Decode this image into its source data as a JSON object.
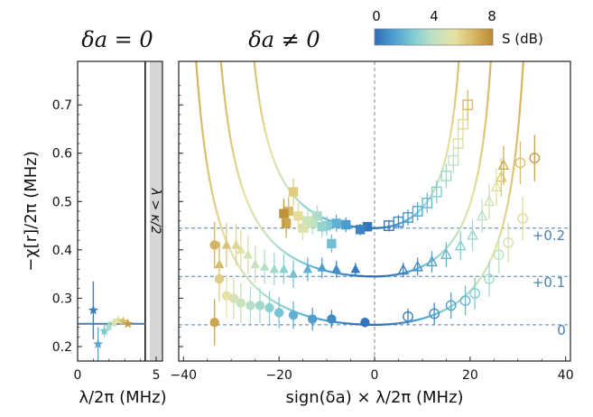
{
  "chart_data": [
    {
      "type": "scatter",
      "title": "δa = 0",
      "xlabel": "λ/2π (MHz)",
      "ylabel": "−χ[r]/2π (MHz)",
      "xlim": [
        0,
        5.4
      ],
      "ylim": [
        0.17,
        0.79
      ],
      "xticks": [
        0,
        5
      ],
      "yticks": [
        0.2,
        0.3,
        0.4,
        0.5,
        0.6,
        0.7
      ],
      "tick_labels_x": [
        "0",
        "5"
      ],
      "tick_labels_y": [
        "0.2",
        "0.3",
        "0.4",
        "0.5",
        "0.6",
        "0.7"
      ],
      "vline_x": 4.3,
      "shaded_region_label": "λ > κ/2",
      "hline_y": 0.247,
      "points": [
        {
          "x": 1.0,
          "y": 0.275,
          "err": 0.06,
          "S": 0.5
        },
        {
          "x": 1.3,
          "y": 0.205,
          "err": 0.035,
          "S": 1.5
        },
        {
          "x": 1.7,
          "y": 0.232,
          "err": 0.012,
          "S": 2.5
        },
        {
          "x": 2.0,
          "y": 0.242,
          "err": 0.01,
          "S": 3.5
        },
        {
          "x": 2.3,
          "y": 0.249,
          "err": 0.008,
          "S": 4.5
        },
        {
          "x": 2.6,
          "y": 0.254,
          "err": 0.006,
          "S": 5.5
        },
        {
          "x": 2.9,
          "y": 0.252,
          "err": 0.005,
          "S": 6.5
        },
        {
          "x": 3.2,
          "y": 0.247,
          "err": 0.004,
          "S": 7.5
        }
      ]
    },
    {
      "type": "scatter",
      "title": "δa ≠ 0",
      "xlabel": "sign(δa) × λ/2π (MHz)",
      "xlim": [
        -41,
        41
      ],
      "ylim": [
        0.17,
        0.79
      ],
      "xticks": [
        -40,
        -20,
        0,
        20,
        40
      ],
      "tick_labels_x": [
        "−40",
        "−20",
        "0",
        "20",
        "40"
      ],
      "offset_labels": [
        "+0.2",
        "+0.1",
        "0"
      ],
      "offsets": [
        0.2,
        0.1,
        0.0
      ],
      "baselines": [
        0.445,
        0.345,
        0.245
      ],
      "series": [
        {
          "marker": "square",
          "offset": 0.2,
          "points": [
            {
              "x": -1.5,
              "y": 0.448,
              "S": 0.2
            },
            {
              "x": -3,
              "y": 0.442,
              "S": 0.6
            },
            {
              "x": -6,
              "y": 0.452,
              "S": 1.2
            },
            {
              "x": -8,
              "y": 0.455,
              "S": 1.8
            },
            {
              "x": -9,
              "y": 0.413,
              "S": 2.2
            },
            {
              "x": -10,
              "y": 0.45,
              "S": 2.6
            },
            {
              "x": -11,
              "y": 0.448,
              "S": 3.0
            },
            {
              "x": -12,
              "y": 0.47,
              "S": 3.5
            },
            {
              "x": -13,
              "y": 0.455,
              "S": 4.0
            },
            {
              "x": -14,
              "y": 0.46,
              "S": 4.4
            },
            {
              "x": -15,
              "y": 0.445,
              "S": 5.0
            },
            {
              "x": -16,
              "y": 0.47,
              "S": 5.5
            },
            {
              "x": -17,
              "y": 0.52,
              "S": 6.0
            },
            {
              "x": -18,
              "y": 0.48,
              "S": 6.6
            },
            {
              "x": -18.5,
              "y": 0.455,
              "S": 7.2
            },
            {
              "x": -19,
              "y": 0.475,
              "S": 7.8
            },
            {
              "x": 3,
              "y": 0.45,
              "S": 0.3,
              "open": true
            },
            {
              "x": 5,
              "y": 0.458,
              "S": 0.7,
              "open": true
            },
            {
              "x": 7,
              "y": 0.467,
              "S": 1.1,
              "open": true
            },
            {
              "x": 9,
              "y": 0.48,
              "S": 1.5,
              "open": true
            },
            {
              "x": 11,
              "y": 0.497,
              "S": 2.0,
              "open": true
            },
            {
              "x": 13,
              "y": 0.52,
              "S": 2.6,
              "open": true
            },
            {
              "x": 15,
              "y": 0.553,
              "S": 3.3,
              "open": true
            },
            {
              "x": 16.5,
              "y": 0.585,
              "S": 4.0,
              "open": true
            },
            {
              "x": 17.5,
              "y": 0.62,
              "S": 4.8,
              "open": true
            },
            {
              "x": 18.5,
              "y": 0.66,
              "S": 5.6,
              "open": true
            },
            {
              "x": 19.5,
              "y": 0.7,
              "S": 6.6,
              "open": true
            }
          ]
        },
        {
          "marker": "triangle",
          "offset": 0.1,
          "points": [
            {
              "x": -4,
              "y": 0.36,
              "S": 0.3
            },
            {
              "x": -8,
              "y": 0.36,
              "S": 0.8
            },
            {
              "x": -11,
              "y": 0.363,
              "S": 1.3
            },
            {
              "x": -14,
              "y": 0.36,
              "S": 1.8
            },
            {
              "x": -17,
              "y": 0.35,
              "S": 2.3
            },
            {
              "x": -19,
              "y": 0.36,
              "S": 2.8
            },
            {
              "x": -21,
              "y": 0.36,
              "S": 3.3
            },
            {
              "x": -23,
              "y": 0.365,
              "S": 3.8
            },
            {
              "x": -25,
              "y": 0.37,
              "S": 4.3
            },
            {
              "x": -26.5,
              "y": 0.39,
              "S": 4.8
            },
            {
              "x": -28,
              "y": 0.4,
              "S": 5.3
            },
            {
              "x": -29,
              "y": 0.41,
              "S": 5.8
            },
            {
              "x": -31,
              "y": 0.41,
              "S": 6.3
            },
            {
              "x": -32.5,
              "y": 0.37,
              "S": 6.8
            },
            {
              "x": 6,
              "y": 0.358,
              "S": 0.5,
              "open": true
            },
            {
              "x": 9,
              "y": 0.365,
              "S": 0.9,
              "open": true
            },
            {
              "x": 12,
              "y": 0.375,
              "S": 1.4,
              "open": true
            },
            {
              "x": 15,
              "y": 0.39,
              "S": 2.0,
              "open": true
            },
            {
              "x": 18,
              "y": 0.408,
              "S": 2.6,
              "open": true
            },
            {
              "x": 20.5,
              "y": 0.43,
              "S": 3.2,
              "open": true
            },
            {
              "x": 22.5,
              "y": 0.47,
              "S": 3.9,
              "open": true
            },
            {
              "x": 24,
              "y": 0.5,
              "S": 4.6,
              "open": true
            },
            {
              "x": 25.5,
              "y": 0.53,
              "S": 5.4,
              "open": true
            },
            {
              "x": 26.5,
              "y": 0.55,
              "S": 6.2,
              "open": true
            },
            {
              "x": 27,
              "y": 0.575,
              "S": 7.0,
              "open": true
            }
          ]
        },
        {
          "marker": "circle",
          "offset": 0.0,
          "points": [
            {
              "x": -2,
              "y": 0.25,
              "S": 0.2
            },
            {
              "x": -9,
              "y": 0.257,
              "S": 0.8
            },
            {
              "x": -13,
              "y": 0.257,
              "S": 1.3
            },
            {
              "x": -17,
              "y": 0.265,
              "S": 1.8
            },
            {
              "x": -20,
              "y": 0.27,
              "S": 2.3
            },
            {
              "x": -22,
              "y": 0.28,
              "S": 2.8
            },
            {
              "x": -24,
              "y": 0.285,
              "S": 3.3
            },
            {
              "x": -26,
              "y": 0.285,
              "S": 3.8
            },
            {
              "x": -28,
              "y": 0.29,
              "S": 4.3
            },
            {
              "x": -29.5,
              "y": 0.3,
              "S": 4.8
            },
            {
              "x": -31,
              "y": 0.305,
              "S": 5.3
            },
            {
              "x": -32.5,
              "y": 0.34,
              "S": 6.0
            },
            {
              "x": -33.5,
              "y": 0.41,
              "S": 6.8
            },
            {
              "x": -33.5,
              "y": 0.25,
              "S": 7.2
            },
            {
              "x": 7,
              "y": 0.262,
              "S": 0.5,
              "open": true
            },
            {
              "x": 12.5,
              "y": 0.268,
              "S": 0.9,
              "open": true
            },
            {
              "x": 16,
              "y": 0.285,
              "S": 1.4,
              "open": true
            },
            {
              "x": 19,
              "y": 0.295,
              "S": 2.0,
              "open": true
            },
            {
              "x": 21,
              "y": 0.31,
              "S": 2.6,
              "open": true
            },
            {
              "x": 24,
              "y": 0.34,
              "S": 3.3,
              "open": true
            },
            {
              "x": 26,
              "y": 0.39,
              "S": 4.0,
              "open": true
            },
            {
              "x": 28,
              "y": 0.415,
              "S": 4.8,
              "open": true
            },
            {
              "x": 31,
              "y": 0.465,
              "S": 5.6,
              "open": true
            },
            {
              "x": 30.5,
              "y": 0.58,
              "S": 6.4,
              "open": true
            },
            {
              "x": 33.5,
              "y": 0.59,
              "S": 7.4,
              "open": true
            }
          ]
        }
      ]
    }
  ],
  "colorbar": {
    "label": "S (dB)",
    "ticks": [
      "0",
      "4",
      "8"
    ],
    "range": [
      0,
      8
    ],
    "colors": [
      "#2f6db6",
      "#4fa0cf",
      "#86cfd4",
      "#bfe2c3",
      "#e6e2a4",
      "#d8b864",
      "#b98a2f"
    ]
  },
  "colors": {
    "offset_text": "#4a7fb0",
    "dashed_line": "#4a7fb0",
    "zero_line": "#999999",
    "shade": "#d6d6d6"
  }
}
